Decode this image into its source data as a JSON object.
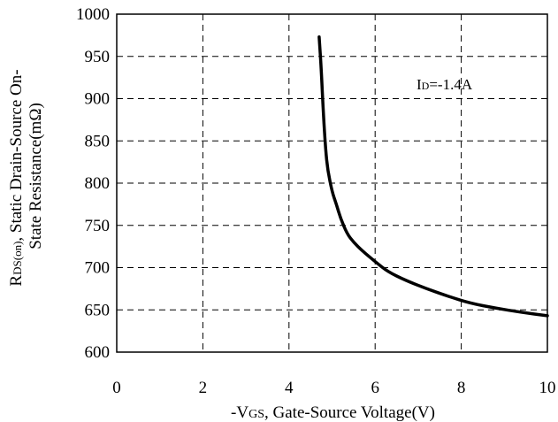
{
  "chart_data": {
    "type": "line",
    "title": "",
    "xlabel": "-VGS, Gate-Source Voltage(V)",
    "xlabel_parts": {
      "pre": "-V",
      "sub": "GS",
      "post": ", Gate-Source Voltage(V)"
    },
    "ylabel": "RDS(on), Static Drain-Source On-State Resistance(mΩ)",
    "ylabel_lines": [
      {
        "pre": "R",
        "sub": "DS(on)",
        "post": ", Static Drain-Source On-"
      },
      {
        "pre": "State Resistance(m",
        "sub": "",
        "post": "Ω)"
      }
    ],
    "annotation": {
      "pre": "I",
      "sub": "D",
      "post": "=-1.4A"
    },
    "xlim": [
      0,
      10
    ],
    "ylim": [
      600,
      1000
    ],
    "x_ticks": [
      0,
      2,
      4,
      6,
      8,
      10
    ],
    "y_ticks": [
      600,
      650,
      700,
      750,
      800,
      850,
      900,
      950,
      1000
    ],
    "grid": true,
    "series": [
      {
        "x": [
          4.7,
          4.75,
          4.8,
          4.85,
          4.9,
          5.0,
          5.1,
          5.2,
          5.35,
          5.5,
          5.7,
          6.0,
          6.3,
          6.7,
          7.2,
          7.7,
          8.2,
          8.8,
          9.4,
          10.0
        ],
        "values": [
          973,
          935,
          880,
          840,
          815,
          790,
          775,
          758,
          740,
          730,
          720,
          707,
          695,
          685,
          675,
          666,
          658,
          652,
          647,
          643
        ]
      }
    ]
  }
}
